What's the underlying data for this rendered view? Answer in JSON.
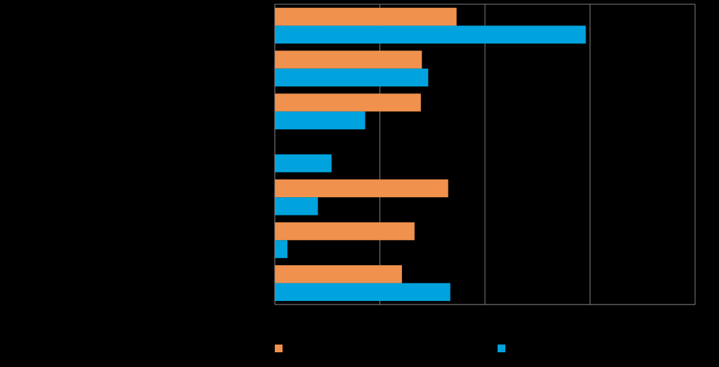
{
  "chart_data": {
    "type": "bar",
    "orientation": "horizontal",
    "categories": [
      "",
      "",
      "",
      "",
      "",
      "",
      ""
    ],
    "series": [
      {
        "name": "",
        "color": "#F0914E",
        "values": [
          1.73,
          1.4,
          1.39,
          0,
          1.65,
          1.33,
          1.21
        ]
      },
      {
        "name": "",
        "color": "#00A3DD",
        "values": [
          2.96,
          1.46,
          0.86,
          0.54,
          0.41,
          0.12,
          1.67
        ]
      }
    ],
    "xlim": [
      0,
      4
    ],
    "xticks": [
      0,
      1,
      2,
      3,
      4
    ],
    "grid": true,
    "legend_position": "bottom",
    "title": "",
    "xlabel": "",
    "ylabel": ""
  }
}
